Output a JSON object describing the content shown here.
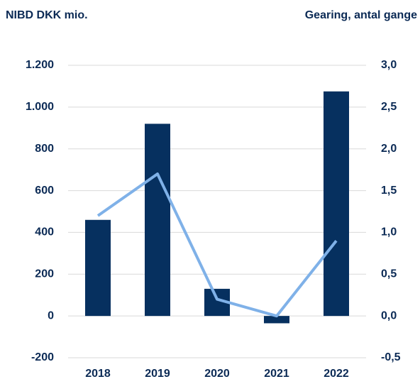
{
  "chart_data": {
    "type": "combo",
    "ylabel": "NIBD DKK mio.",
    "y2label": "Gearing, antal gange",
    "categories": [
      "2018",
      "2019",
      "2020",
      "2021",
      "2022"
    ],
    "series": [
      {
        "name": "NIBD",
        "type": "bar",
        "color": "#06305f",
        "values": [
          460,
          920,
          130,
          -35,
          1075
        ]
      },
      {
        "name": "Gearing",
        "type": "line",
        "axis": "y2",
        "color": "#7fb1e8",
        "values": [
          1.2,
          1.7,
          0.2,
          0.0,
          0.9
        ]
      }
    ],
    "ylim": [
      -200,
      1200
    ],
    "yticks": [
      -200,
      0,
      200,
      400,
      600,
      800,
      {
        "value": 1000,
        "label": "1.000"
      },
      {
        "value": 1200,
        "label": "1.200"
      }
    ],
    "y2lim": [
      -0.5,
      3.0
    ],
    "y2ticks": [
      {
        "value": -0.5,
        "label": "-0,5"
      },
      {
        "value": 0,
        "label": "0,0"
      },
      {
        "value": 0.5,
        "label": "0,5"
      },
      {
        "value": 1.0,
        "label": "1,0"
      },
      {
        "value": 1.5,
        "label": "1,5"
      },
      {
        "value": 2.0,
        "label": "2,0"
      },
      {
        "value": 2.5,
        "label": "2,5"
      },
      {
        "value": 3.0,
        "label": "3,0"
      }
    ],
    "grid": true
  }
}
